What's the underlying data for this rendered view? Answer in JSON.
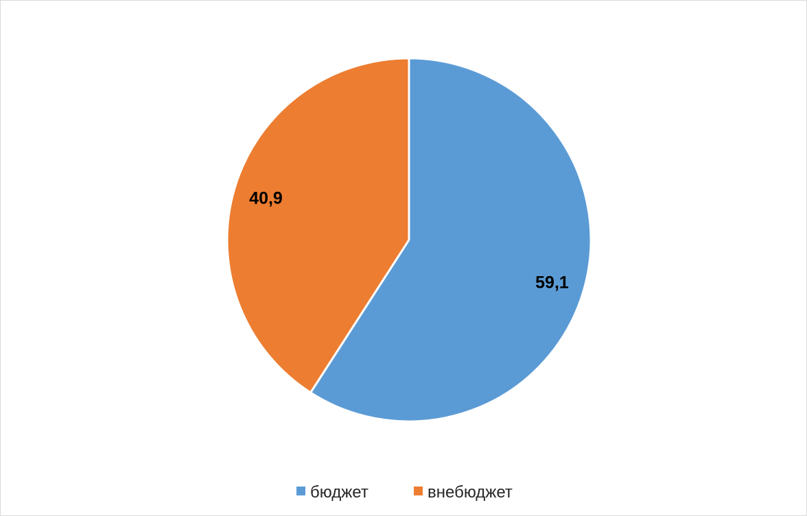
{
  "chart_data": {
    "type": "pie",
    "title": "",
    "categories": [
      "бюджет",
      "внебюджет"
    ],
    "values": [
      59.1,
      40.9
    ],
    "data_labels": [
      "59,1",
      "40,9"
    ],
    "colors": [
      "#5b9bd5",
      "#ed7d31"
    ],
    "legend_position": "bottom",
    "start_angle": "12 o'clock",
    "direction": "clockwise"
  }
}
